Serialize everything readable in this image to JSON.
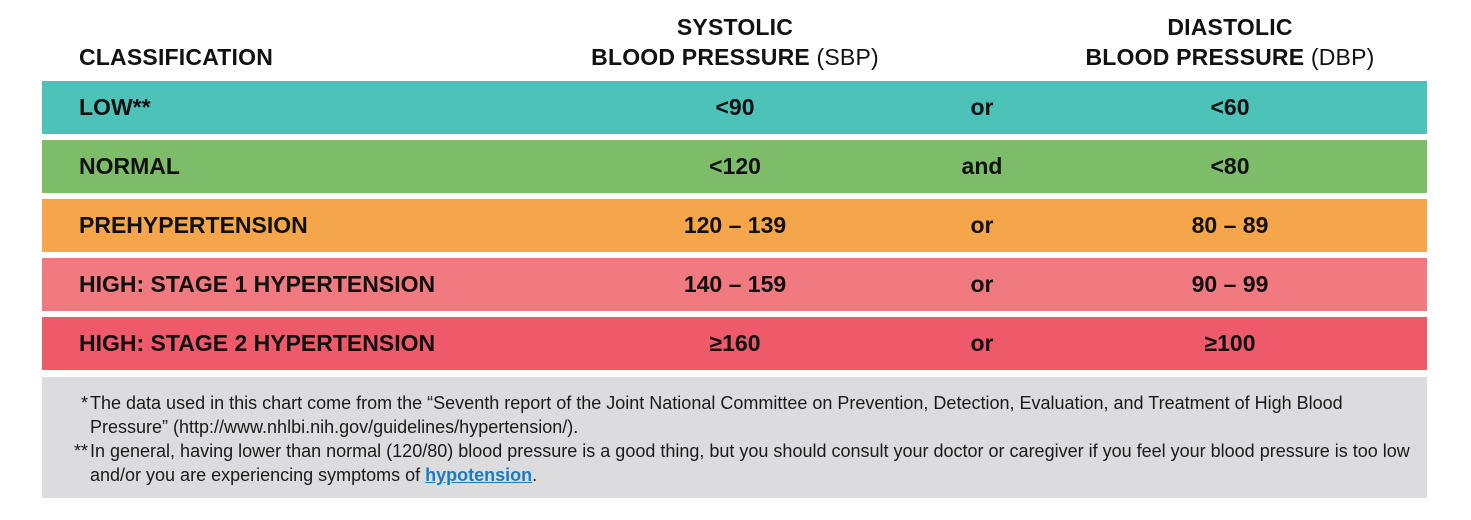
{
  "header": {
    "classification": "CLASSIFICATION",
    "systolic_line1": "SYSTOLIC",
    "systolic_line2_bold": "BLOOD PRESSURE",
    "systolic_abbr": "(SBP)",
    "diastolic_line1": "DIASTOLIC",
    "diastolic_line2_bold": "BLOOD PRESSURE",
    "diastolic_abbr": "(DBP)"
  },
  "rows": [
    {
      "classification": "LOW**",
      "systolic": "<90",
      "conjunction": "or",
      "diastolic": "<60",
      "color": "#4dc2b9"
    },
    {
      "classification": "NORMAL",
      "systolic": "<120",
      "conjunction": "and",
      "diastolic": "<80",
      "color": "#7dbd6a"
    },
    {
      "classification": "PREHYPERTENSION",
      "systolic": "120 – 139",
      "conjunction": "or",
      "diastolic": "80 – 89",
      "color": "#f5a64b"
    },
    {
      "classification": "HIGH: STAGE 1 HYPERTENSION",
      "systolic": "140 – 159",
      "conjunction": "or",
      "diastolic": "90 – 99",
      "color": "#f07a7f"
    },
    {
      "classification": "HIGH: STAGE 2 HYPERTENSION",
      "systolic": "≥160",
      "conjunction": "or",
      "diastolic": "≥100",
      "color": "#ef5a6a"
    }
  ],
  "footnotes": {
    "fn1_mark": "*",
    "fn1_text": "The data used in this chart come from the “Seventh report of the Joint National Committee on Prevention, Detection, Evaluation, and Treatment of High Blood Pressure” (http://www.nhlbi.nih.gov/guidelines/hypertension/).",
    "fn2_mark": "**",
    "fn2_text": "In general, having lower than normal (120/80) blood pressure is a good thing, but you should consult your doctor or caregiver if you feel your blood pressure is too low and/or you are experiencing symptoms of ",
    "fn2_link": "hypotension",
    "fn2_end": "."
  }
}
